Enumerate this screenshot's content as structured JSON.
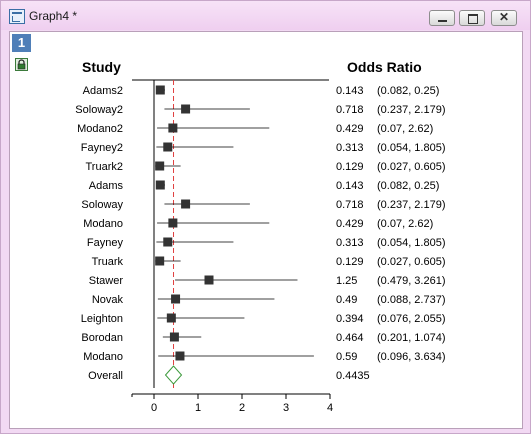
{
  "window": {
    "title": "Graph4 *",
    "layer_label": "1"
  },
  "colors": {
    "marker": "#333333",
    "line": "#000000",
    "ref_line": "#e04040",
    "overall": "#3c9a3c",
    "axis": "#000000"
  },
  "icons": {
    "app": "graph-window-icon",
    "lock": "lock-icon"
  },
  "chart_data": {
    "type": "forest",
    "headers": {
      "study": "Study",
      "odds_ratio": "Odds Ratio"
    },
    "xlim": [
      -0.5,
      4
    ],
    "xticks": [
      0,
      1,
      2,
      3,
      4
    ],
    "ref_x": 0.4435,
    "rows": [
      {
        "study": "Adams2",
        "or": 0.143,
        "lo": 0.082,
        "hi": 0.25,
        "or_label": "0.143",
        "ci_label": "(0.082, 0.25)"
      },
      {
        "study": "Soloway2",
        "or": 0.718,
        "lo": 0.237,
        "hi": 2.179,
        "or_label": "0.718",
        "ci_label": "(0.237, 2.179)"
      },
      {
        "study": "Modano2",
        "or": 0.429,
        "lo": 0.07,
        "hi": 2.62,
        "or_label": "0.429",
        "ci_label": "(0.07, 2.62)"
      },
      {
        "study": "Fayney2",
        "or": 0.313,
        "lo": 0.054,
        "hi": 1.805,
        "or_label": "0.313",
        "ci_label": "(0.054, 1.805)"
      },
      {
        "study": "Truark2",
        "or": 0.129,
        "lo": 0.027,
        "hi": 0.605,
        "or_label": "0.129",
        "ci_label": "(0.027, 0.605)"
      },
      {
        "study": "Adams",
        "or": 0.143,
        "lo": 0.082,
        "hi": 0.25,
        "or_label": "0.143",
        "ci_label": "(0.082, 0.25)"
      },
      {
        "study": "Soloway",
        "or": 0.718,
        "lo": 0.237,
        "hi": 2.179,
        "or_label": "0.718",
        "ci_label": "(0.237, 2.179)"
      },
      {
        "study": "Modano",
        "or": 0.429,
        "lo": 0.07,
        "hi": 2.62,
        "or_label": "0.429",
        "ci_label": "(0.07, 2.62)"
      },
      {
        "study": "Fayney",
        "or": 0.313,
        "lo": 0.054,
        "hi": 1.805,
        "or_label": "0.313",
        "ci_label": "(0.054, 1.805)"
      },
      {
        "study": "Truark",
        "or": 0.129,
        "lo": 0.027,
        "hi": 0.605,
        "or_label": "0.129",
        "ci_label": "(0.027, 0.605)"
      },
      {
        "study": "Stawer",
        "or": 1.25,
        "lo": 0.479,
        "hi": 3.261,
        "or_label": "1.25",
        "ci_label": "(0.479, 3.261)"
      },
      {
        "study": "Novak",
        "or": 0.49,
        "lo": 0.088,
        "hi": 2.737,
        "or_label": "0.49",
        "ci_label": "(0.088, 2.737)"
      },
      {
        "study": "Leighton",
        "or": 0.394,
        "lo": 0.076,
        "hi": 2.055,
        "or_label": "0.394",
        "ci_label": "(0.076, 2.055)"
      },
      {
        "study": "Borodan",
        "or": 0.464,
        "lo": 0.201,
        "hi": 1.074,
        "or_label": "0.464",
        "ci_label": "(0.201, 1.074)"
      },
      {
        "study": "Modano",
        "or": 0.59,
        "lo": 0.096,
        "hi": 3.634,
        "or_label": "0.59",
        "ci_label": "(0.096, 3.634)"
      }
    ],
    "overall": {
      "study": "Overall",
      "or": 0.4435,
      "lo": 0.35,
      "hi": 0.55,
      "or_label": "0.4435"
    }
  }
}
